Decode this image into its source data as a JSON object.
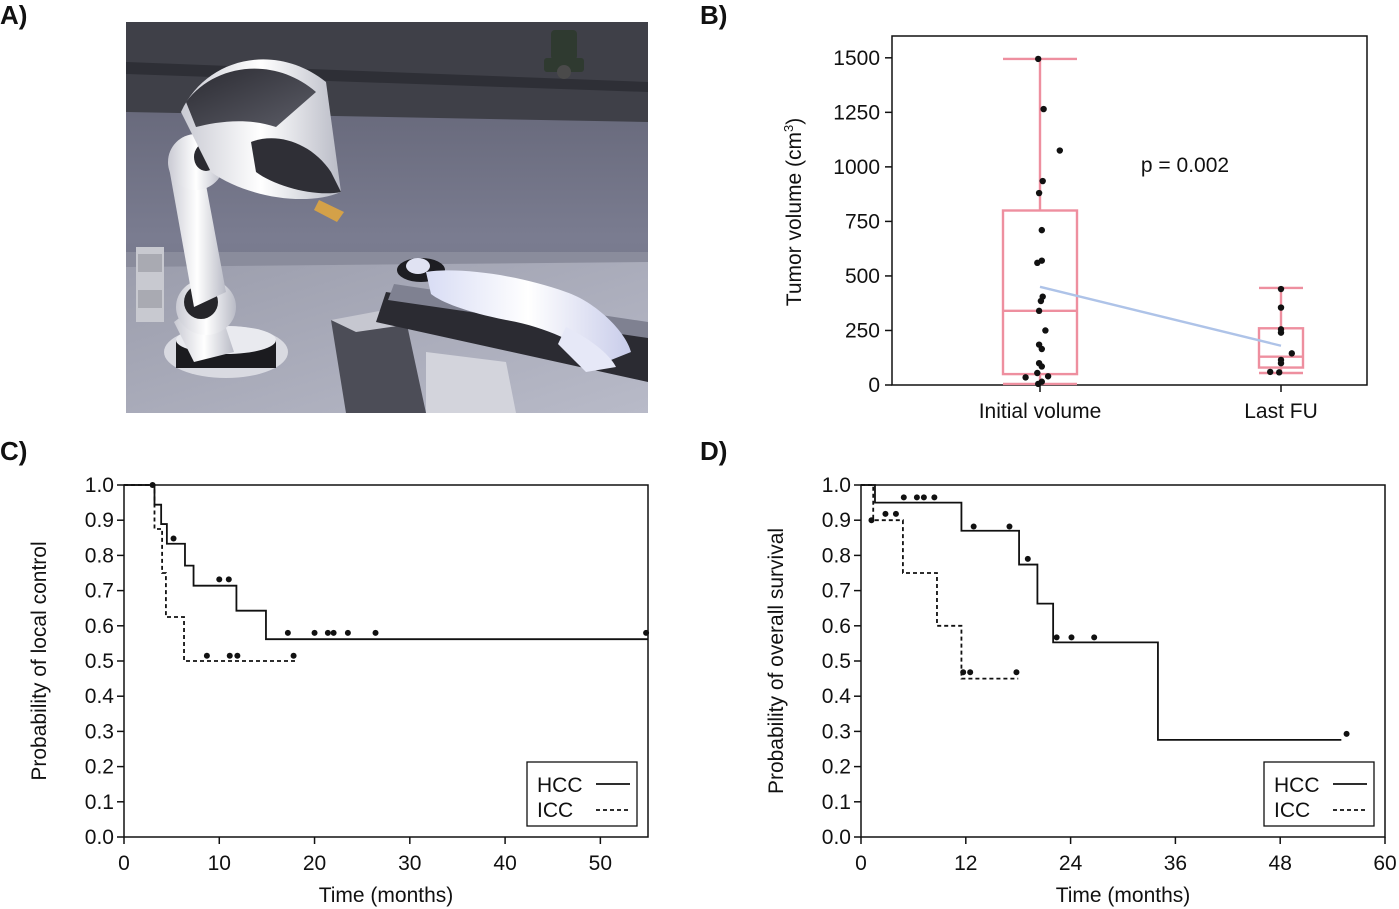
{
  "panels": {
    "a": {
      "label": "A)"
    },
    "b": {
      "label": "B)"
    },
    "c": {
      "label": "C)"
    },
    "d": {
      "label": "D)"
    }
  },
  "photo": {
    "alt": "robotic radiosurgery system"
  },
  "colors": {
    "box": "#ee8f9f",
    "trend": "#aec3e8",
    "dots": "#111111",
    "axis": "#111111"
  },
  "chart_data": [
    {
      "id": "b",
      "type": "box",
      "categories": [
        "Initial volume",
        "Last FU"
      ],
      "ylabel": "Tumor volume (cm3)",
      "ylabel_main": "Tumor volume (cm",
      "ylabel_sup": "3",
      "ylabel_end": ")",
      "ylim": [
        0,
        1600
      ],
      "yticks": [
        0,
        250,
        500,
        750,
        1000,
        1250,
        1500
      ],
      "annotation": "p = 0.002",
      "boxes": [
        {
          "category": "Initial volume",
          "whisker_low": 5,
          "q1": 50,
          "median": 340,
          "q3": 800,
          "whisker_high": 1495,
          "mean": 450
        },
        {
          "category": "Last FU",
          "whisker_low": 55,
          "q1": 80,
          "median": 130,
          "q3": 260,
          "whisker_high": 445,
          "mean": 180
        }
      ],
      "points": [
        {
          "category": "Initial volume",
          "jitter": -0.02,
          "value": 1495
        },
        {
          "category": "Initial volume",
          "jitter": 0.04,
          "value": 1265
        },
        {
          "category": "Initial volume",
          "jitter": 0.22,
          "value": 1075
        },
        {
          "category": "Initial volume",
          "jitter": 0.03,
          "value": 935
        },
        {
          "category": "Initial volume",
          "jitter": -0.01,
          "value": 880
        },
        {
          "category": "Initial volume",
          "jitter": 0.02,
          "value": 710
        },
        {
          "category": "Initial volume",
          "jitter": 0.02,
          "value": 570
        },
        {
          "category": "Initial volume",
          "jitter": -0.03,
          "value": 560
        },
        {
          "category": "Initial volume",
          "jitter": 0.03,
          "value": 405
        },
        {
          "category": "Initial volume",
          "jitter": 0.01,
          "value": 385
        },
        {
          "category": "Initial volume",
          "jitter": -0.01,
          "value": 340
        },
        {
          "category": "Initial volume",
          "jitter": 0.06,
          "value": 250
        },
        {
          "category": "Initial volume",
          "jitter": -0.01,
          "value": 185
        },
        {
          "category": "Initial volume",
          "jitter": 0.02,
          "value": 165
        },
        {
          "category": "Initial volume",
          "jitter": -0.01,
          "value": 100
        },
        {
          "category": "Initial volume",
          "jitter": 0.02,
          "value": 85
        },
        {
          "category": "Initial volume",
          "jitter": -0.03,
          "value": 55
        },
        {
          "category": "Initial volume",
          "jitter": 0.09,
          "value": 40
        },
        {
          "category": "Initial volume",
          "jitter": -0.16,
          "value": 35
        },
        {
          "category": "Initial volume",
          "jitter": 0.02,
          "value": 15
        },
        {
          "category": "Initial volume",
          "jitter": -0.02,
          "value": 5
        },
        {
          "category": "Last FU",
          "jitter": 0.0,
          "value": 440
        },
        {
          "category": "Last FU",
          "jitter": 0.0,
          "value": 355
        },
        {
          "category": "Last FU",
          "jitter": 0.0,
          "value": 255
        },
        {
          "category": "Last FU",
          "jitter": 0.0,
          "value": 240
        },
        {
          "category": "Last FU",
          "jitter": 0.12,
          "value": 145
        },
        {
          "category": "Last FU",
          "jitter": 0.0,
          "value": 115
        },
        {
          "category": "Last FU",
          "jitter": 0.0,
          "value": 100
        },
        {
          "category": "Last FU",
          "jitter": -0.12,
          "value": 60
        },
        {
          "category": "Last FU",
          "jitter": -0.02,
          "value": 58
        }
      ],
      "trend_line": {
        "from": [
          "Initial volume",
          450
        ],
        "to": [
          "Last FU",
          180
        ]
      }
    },
    {
      "id": "c",
      "type": "line",
      "xlabel": "Time (months)",
      "ylabel": "Probability of local control",
      "xlim": [
        0,
        55
      ],
      "ylim": [
        0,
        1
      ],
      "xticks": [
        0,
        10,
        20,
        30,
        40,
        50
      ],
      "yticks": [
        "0.0",
        "0.1",
        "0.2",
        "0.3",
        "0.4",
        "0.5",
        "0.6",
        "0.7",
        "0.8",
        "0.9",
        "1.0"
      ],
      "legend": {
        "placement": "bottom-right",
        "entries": [
          "HCC",
          "ICC"
        ]
      },
      "series": [
        {
          "name": "HCC",
          "style": "solid",
          "steps": [
            [
              0,
              1.0
            ],
            [
              3.2,
              0.944
            ],
            [
              3.9,
              0.889
            ],
            [
              4.5,
              0.833
            ],
            [
              6.4,
              0.771
            ],
            [
              7.3,
              0.714
            ],
            [
              11.8,
              0.643
            ],
            [
              14.9,
              0.562
            ],
            [
              55,
              0.562
            ]
          ],
          "censored": [
            [
              3.0,
              1.0
            ],
            [
              5.2,
              0.848
            ],
            [
              10.0,
              0.732
            ],
            [
              11.0,
              0.732
            ],
            [
              17.2,
              0.58
            ],
            [
              20.0,
              0.58
            ],
            [
              21.4,
              0.58
            ],
            [
              22.0,
              0.58
            ],
            [
              23.5,
              0.58
            ],
            [
              26.4,
              0.58
            ],
            [
              54.8,
              0.58
            ]
          ]
        },
        {
          "name": "ICC",
          "style": "dashed",
          "steps": [
            [
              0,
              1.0
            ],
            [
              3.2,
              0.875
            ],
            [
              4.0,
              0.75
            ],
            [
              4.4,
              0.625
            ],
            [
              6.3,
              0.5
            ],
            [
              18.0,
              0.5
            ]
          ],
          "censored": [
            [
              8.7,
              0.515
            ],
            [
              11.1,
              0.515
            ],
            [
              11.9,
              0.515
            ],
            [
              17.8,
              0.515
            ]
          ]
        }
      ]
    },
    {
      "id": "d",
      "type": "line",
      "xlabel": "Time (months)",
      "ylabel": "Probability of overall survival",
      "xlim": [
        0,
        60
      ],
      "ylim": [
        0,
        1
      ],
      "xticks": [
        0,
        12,
        24,
        36,
        48,
        60
      ],
      "yticks": [
        "0.0",
        "0.1",
        "0.2",
        "0.3",
        "0.4",
        "0.5",
        "0.6",
        "0.7",
        "0.8",
        "0.9",
        "1.0"
      ],
      "legend": {
        "placement": "bottom-right",
        "entries": [
          "HCC",
          "ICC"
        ]
      },
      "series": [
        {
          "name": "HCC",
          "style": "solid",
          "steps": [
            [
              0,
              1.0
            ],
            [
              1.6,
              0.95
            ],
            [
              11.5,
              0.87
            ],
            [
              18.1,
              0.774
            ],
            [
              20.2,
              0.663
            ],
            [
              22.0,
              0.553
            ],
            [
              34.0,
              0.276
            ],
            [
              55,
              0.276
            ]
          ],
          "censored": [
            [
              4.9,
              0.965
            ],
            [
              6.4,
              0.965
            ],
            [
              7.2,
              0.965
            ],
            [
              8.4,
              0.965
            ],
            [
              12.9,
              0.882
            ],
            [
              17.0,
              0.882
            ],
            [
              19.1,
              0.79
            ],
            [
              22.4,
              0.567
            ],
            [
              24.1,
              0.567
            ],
            [
              26.7,
              0.567
            ],
            [
              55.6,
              0.293
            ]
          ]
        },
        {
          "name": "ICC",
          "style": "dashed",
          "steps": [
            [
              0,
              1.0
            ],
            [
              1.4,
              0.9
            ],
            [
              4.8,
              0.75
            ],
            [
              8.7,
              0.6
            ],
            [
              11.5,
              0.45
            ],
            [
              18.0,
              0.45
            ]
          ],
          "censored": [
            [
              1.2,
              0.9
            ],
            [
              2.8,
              0.918
            ],
            [
              4.0,
              0.918
            ],
            [
              11.7,
              0.468
            ],
            [
              12.5,
              0.468
            ],
            [
              17.8,
              0.468
            ]
          ]
        }
      ]
    }
  ]
}
